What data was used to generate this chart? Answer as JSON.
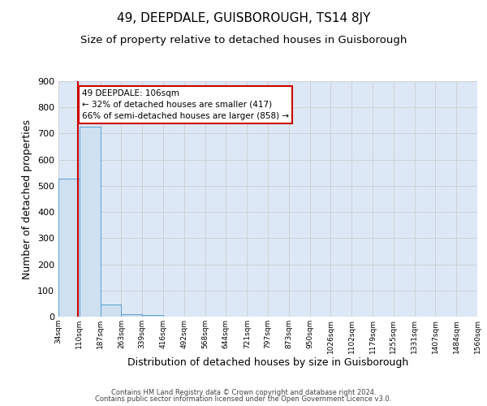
{
  "title": "49, DEEPDALE, GUISBOROUGH, TS14 8JY",
  "subtitle": "Size of property relative to detached houses in Guisborough",
  "xlabel": "Distribution of detached houses by size in Guisborough",
  "ylabel": "Number of detached properties",
  "bin_edges": [
    34,
    110,
    187,
    263,
    339,
    416,
    492,
    568,
    644,
    721,
    797,
    873,
    950,
    1026,
    1102,
    1179,
    1255,
    1331,
    1407,
    1484,
    1560
  ],
  "bar_heights": [
    528,
    725,
    48,
    10,
    5,
    0,
    0,
    0,
    0,
    0,
    0,
    0,
    0,
    0,
    0,
    0,
    0,
    0,
    0,
    0
  ],
  "bar_color": "#cfe0f0",
  "bar_edgecolor": "#5a9fd4",
  "property_line_x": 106,
  "property_line_color": "#cc0000",
  "ylim": [
    0,
    900
  ],
  "yticks": [
    0,
    100,
    200,
    300,
    400,
    500,
    600,
    700,
    800,
    900
  ],
  "xtick_labels": [
    "34sqm",
    "110sqm",
    "187sqm",
    "263sqm",
    "339sqm",
    "416sqm",
    "492sqm",
    "568sqm",
    "644sqm",
    "721sqm",
    "797sqm",
    "873sqm",
    "950sqm",
    "1026sqm",
    "1102sqm",
    "1179sqm",
    "1255sqm",
    "1331sqm",
    "1407sqm",
    "1484sqm",
    "1560sqm"
  ],
  "annotation_text": "49 DEEPDALE: 106sqm\n← 32% of detached houses are smaller (417)\n66% of semi-detached houses are larger (858) →",
  "annotation_box_facecolor": "#ffffff",
  "annotation_box_edgecolor": "#cc0000",
  "grid_color": "#c8c8c8",
  "background_color": "#dce8f5",
  "footer_line1": "Contains HM Land Registry data © Crown copyright and database right 2024.",
  "footer_line2": "Contains public sector information licensed under the Open Government Licence v3.0.",
  "title_fontsize": 11,
  "subtitle_fontsize": 9.5,
  "xlabel_fontsize": 9,
  "ylabel_fontsize": 9
}
